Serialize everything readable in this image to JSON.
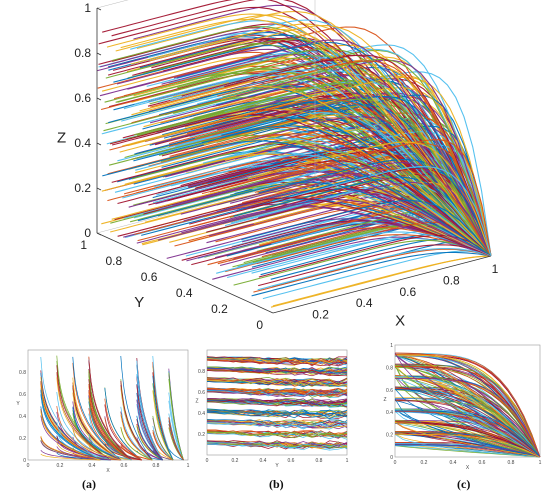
{
  "chart_data": [
    {
      "type": "line",
      "view": "3d",
      "axes": {
        "x": {
          "label": "X",
          "range": [
            0,
            1
          ],
          "ticks": [
            "0.2",
            "0.4",
            "0.6",
            "0.8",
            "1"
          ]
        },
        "y": {
          "label": "Y",
          "range": [
            0,
            1
          ],
          "ticks": [
            "0",
            "0.2",
            "0.4",
            "0.6",
            "0.8",
            "1"
          ]
        },
        "z": {
          "label": "Z",
          "range": [
            0,
            1
          ],
          "ticks": [
            "0",
            "0.2",
            "0.4",
            "0.6",
            "0.8",
            "1"
          ]
        }
      },
      "grid": false,
      "legend": "none",
      "series_description_count": 400,
      "curve_family": {
        "start_x": 0,
        "start_y_range": [
          0,
          1
        ],
        "start_z_range": [
          0,
          1
        ],
        "end_point": [
          1,
          0,
          0
        ]
      }
    },
    {
      "type": "line",
      "caption": "(a)",
      "axes": {
        "x": {
          "label": "X",
          "range": [
            0,
            1
          ],
          "ticks": [
            "0",
            "0.2",
            "0.4",
            "0.6",
            "0.8",
            "1"
          ]
        },
        "y": {
          "label": "Y",
          "range": [
            0,
            1
          ],
          "ticks": [
            "0",
            "0.2",
            "0.4",
            "0.6",
            "0.8"
          ]
        }
      }
    },
    {
      "type": "line",
      "caption": "(b)",
      "axes": {
        "x": {
          "label": "Y",
          "range": [
            0,
            1
          ],
          "ticks": [
            "0",
            "0.2",
            "0.4",
            "0.6",
            "0.8",
            "1"
          ]
        },
        "y": {
          "label": "Z",
          "range": [
            0,
            1
          ],
          "ticks": [
            "0.2",
            "0.4",
            "0.6",
            "0.8"
          ]
        }
      }
    },
    {
      "type": "line",
      "caption": "(c)",
      "axes": {
        "x": {
          "label": "X",
          "range": [
            0,
            1
          ],
          "ticks": [
            "0",
            "0.2",
            "0.4",
            "0.6",
            "0.8",
            "1"
          ]
        },
        "y": {
          "label": "Z",
          "range": [
            0,
            1
          ],
          "ticks": [
            "0",
            "0.2",
            "0.4",
            "0.6",
            "0.8",
            "1"
          ]
        }
      }
    }
  ],
  "palette": [
    "#0072BD",
    "#D95319",
    "#EDB120",
    "#7E2F8E",
    "#77AC30",
    "#4DBEEE",
    "#A2142F"
  ]
}
